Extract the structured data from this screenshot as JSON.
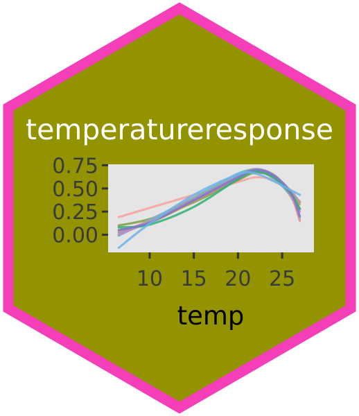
{
  "hex": {
    "fill": "#939300",
    "border": "#f53fb8",
    "title": "temperatureresponse",
    "title_color": "#ffffff"
  },
  "chart_data": {
    "type": "line",
    "xlabel": "temp",
    "ylabel": "",
    "x_ticks": [
      10,
      15,
      20,
      25
    ],
    "y_ticks": [
      "0.00",
      "0.25",
      "0.50",
      "0.75"
    ],
    "xlim": [
      5.3,
      28.6
    ],
    "ylim": [
      -0.19,
      0.76
    ],
    "grid": false,
    "panel_color": "#e5e5e5",
    "series": [
      {
        "color": "#f4a3a0",
        "points": [
          [
            6.5,
            0.19
          ],
          [
            10,
            0.29
          ],
          [
            15,
            0.43
          ],
          [
            20,
            0.57
          ],
          [
            22,
            0.62
          ],
          [
            24,
            0.59
          ],
          [
            26,
            0.45
          ],
          [
            27,
            0.36
          ]
        ]
      },
      {
        "color": "#7e9c48",
        "points": [
          [
            6.5,
            0.1
          ],
          [
            10,
            0.17
          ],
          [
            15,
            0.35
          ],
          [
            20,
            0.59
          ],
          [
            22,
            0.67
          ],
          [
            24,
            0.62
          ],
          [
            26,
            0.42
          ],
          [
            27,
            0.28
          ]
        ]
      },
      {
        "color": "#c6a634",
        "points": [
          [
            6.5,
            0.05
          ],
          [
            10,
            0.13
          ],
          [
            15,
            0.36
          ],
          [
            20,
            0.62
          ],
          [
            22,
            0.7
          ],
          [
            24,
            0.65
          ],
          [
            26,
            0.46
          ],
          [
            27,
            0.33
          ]
        ]
      },
      {
        "color": "#5bbfd2",
        "points": [
          [
            6.5,
            -0.01
          ],
          [
            10,
            0.16
          ],
          [
            15,
            0.4
          ],
          [
            20,
            0.66
          ],
          [
            22,
            0.69
          ],
          [
            24,
            0.61
          ],
          [
            26,
            0.41
          ],
          [
            27,
            0.18
          ]
        ]
      },
      {
        "color": "#d57fd1",
        "points": [
          [
            6.5,
            0.0
          ],
          [
            10,
            0.14
          ],
          [
            15,
            0.37
          ],
          [
            20,
            0.61
          ],
          [
            22,
            0.68
          ],
          [
            24,
            0.63
          ],
          [
            26,
            0.43
          ],
          [
            27,
            0.25
          ]
        ]
      },
      {
        "color": "#e38a95",
        "points": [
          [
            6.5,
            0.03
          ],
          [
            10,
            0.15
          ],
          [
            15,
            0.39
          ],
          [
            20,
            0.62
          ],
          [
            22,
            0.68
          ],
          [
            24,
            0.62
          ],
          [
            26,
            0.42
          ],
          [
            27,
            0.15
          ]
        ]
      },
      {
        "color": "#9a9eb0",
        "points": [
          [
            6.5,
            0.02
          ],
          [
            10,
            0.14
          ],
          [
            15,
            0.39
          ],
          [
            20,
            0.64
          ],
          [
            22,
            0.71
          ],
          [
            24,
            0.65
          ],
          [
            26,
            0.47
          ],
          [
            27,
            0.35
          ]
        ]
      },
      {
        "color": "#2fb072",
        "points": [
          [
            6.5,
            0.08
          ],
          [
            10,
            0.11
          ],
          [
            15,
            0.3
          ],
          [
            20,
            0.6
          ],
          [
            22,
            0.68
          ],
          [
            24,
            0.62
          ],
          [
            26,
            0.44
          ],
          [
            27,
            0.28
          ]
        ]
      },
      {
        "color": "#7c76ce",
        "points": [
          [
            6.5,
            0.05
          ],
          [
            10,
            0.13
          ],
          [
            15,
            0.37
          ],
          [
            20,
            0.62
          ],
          [
            22,
            0.7
          ],
          [
            24,
            0.64
          ],
          [
            26,
            0.45
          ],
          [
            27,
            0.2
          ]
        ]
      },
      {
        "color": "#6fb4e8",
        "points": [
          [
            6.5,
            -0.14
          ],
          [
            10,
            0.12
          ],
          [
            15,
            0.43
          ],
          [
            20,
            0.65
          ],
          [
            22,
            0.66
          ],
          [
            24,
            0.58
          ],
          [
            26,
            0.48
          ],
          [
            27,
            0.43
          ]
        ]
      }
    ]
  }
}
